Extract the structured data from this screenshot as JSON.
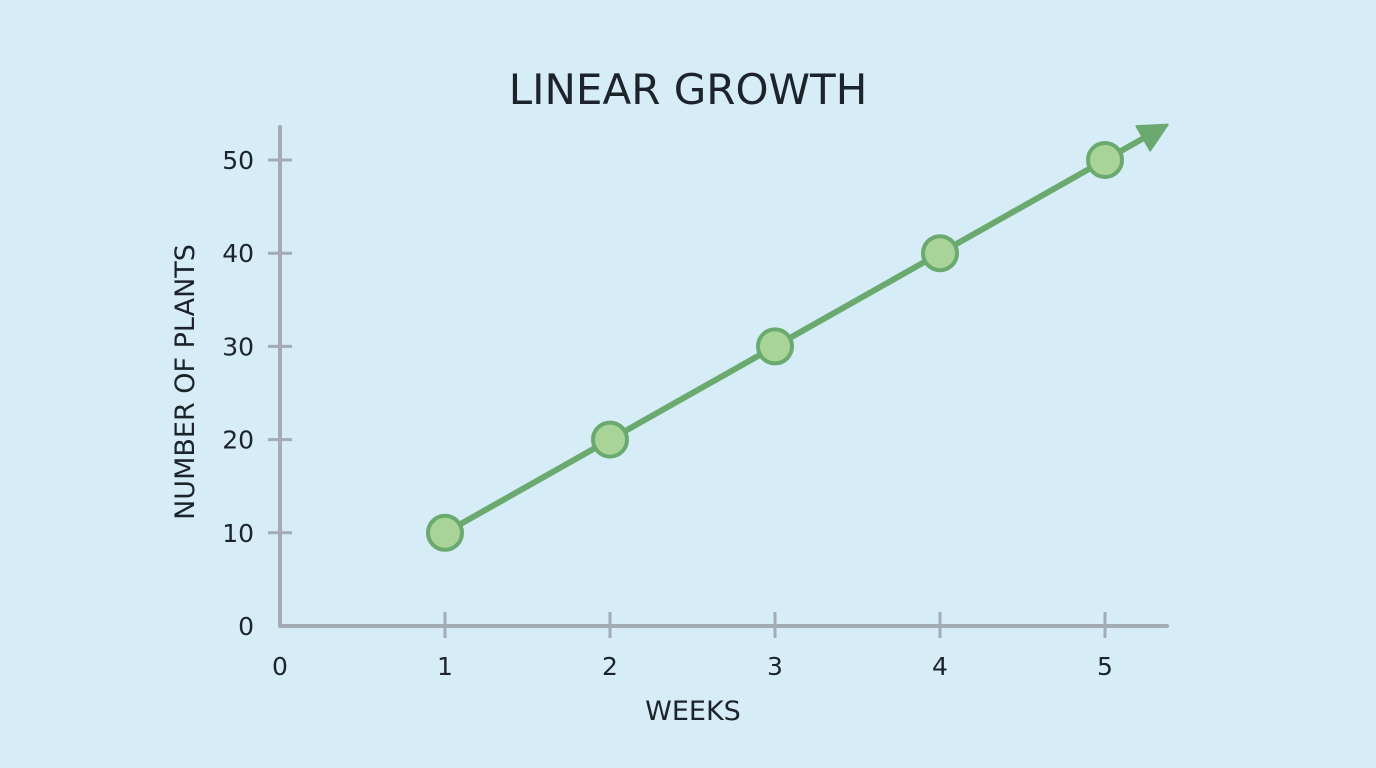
{
  "chart_data": {
    "type": "line",
    "title": "LINEAR GROWTH",
    "xlabel": "WEEKS",
    "ylabel": "NUMBER OF PLANTS",
    "x_ticks": [
      "0",
      "1",
      "2",
      "3",
      "4",
      "5"
    ],
    "y_ticks": [
      "0",
      "10",
      "20",
      "30",
      "40",
      "50"
    ],
    "xlim": [
      0,
      5
    ],
    "ylim": [
      0,
      50
    ],
    "grid": false,
    "line_ends_with_arrow": true,
    "series": [
      {
        "x": [
          1,
          2,
          3,
          4,
          5
        ],
        "y": [
          10,
          20,
          30,
          40,
          50
        ]
      }
    ],
    "colors": {
      "background": "#d6ecf7",
      "axis": "#a3abb5",
      "line": "#6aaa6e",
      "marker_fill": "#a8d597",
      "marker_stroke": "#6aaa6e",
      "text": "#1c232b"
    }
  }
}
